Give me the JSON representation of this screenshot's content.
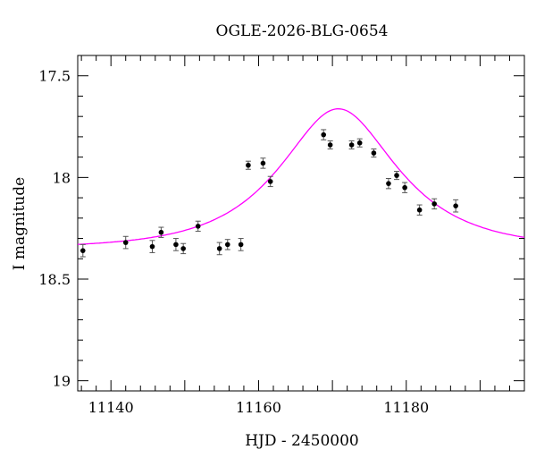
{
  "chart_data": {
    "type": "scatter",
    "title": "OGLE-2026-BLG-0654",
    "xlabel": "HJD - 2450000",
    "ylabel": "I magnitude",
    "xlim": [
      11135.5,
      11196
    ],
    "ylim": [
      19.05,
      17.4
    ],
    "y_inverted": true,
    "x_ticks": [
      11140,
      11160,
      11180
    ],
    "y_ticks": [
      17.5,
      18,
      18.5,
      19
    ],
    "y_tick_labels": [
      "17.5",
      "18",
      "18.5",
      "19"
    ],
    "grid": false,
    "model_color": "#ff00ff",
    "point_color": "#000000",
    "errorbar_color": "#555555",
    "points": [
      {
        "x": 11136.2,
        "y": 18.36,
        "err": 0.03
      },
      {
        "x": 11142.0,
        "y": 18.32,
        "err": 0.03
      },
      {
        "x": 11145.6,
        "y": 18.34,
        "err": 0.03
      },
      {
        "x": 11146.8,
        "y": 18.27,
        "err": 0.025
      },
      {
        "x": 11148.8,
        "y": 18.33,
        "err": 0.03
      },
      {
        "x": 11149.8,
        "y": 18.35,
        "err": 0.025
      },
      {
        "x": 11151.8,
        "y": 18.24,
        "err": 0.025
      },
      {
        "x": 11154.7,
        "y": 18.35,
        "err": 0.03
      },
      {
        "x": 11155.8,
        "y": 18.33,
        "err": 0.025
      },
      {
        "x": 11157.6,
        "y": 18.33,
        "err": 0.03
      },
      {
        "x": 11158.6,
        "y": 17.94,
        "err": 0.02
      },
      {
        "x": 11160.6,
        "y": 17.93,
        "err": 0.025
      },
      {
        "x": 11161.6,
        "y": 18.02,
        "err": 0.025
      },
      {
        "x": 11168.8,
        "y": 17.79,
        "err": 0.025
      },
      {
        "x": 11169.7,
        "y": 17.84,
        "err": 0.02
      },
      {
        "x": 11172.6,
        "y": 17.84,
        "err": 0.02
      },
      {
        "x": 11173.7,
        "y": 17.83,
        "err": 0.02
      },
      {
        "x": 11175.6,
        "y": 17.88,
        "err": 0.02
      },
      {
        "x": 11177.6,
        "y": 18.03,
        "err": 0.025
      },
      {
        "x": 11178.7,
        "y": 17.99,
        "err": 0.02
      },
      {
        "x": 11179.8,
        "y": 18.05,
        "err": 0.025
      },
      {
        "x": 11181.8,
        "y": 18.16,
        "err": 0.025
      },
      {
        "x": 11183.8,
        "y": 18.13,
        "err": 0.025
      },
      {
        "x": 11186.7,
        "y": 18.14,
        "err": 0.03
      }
    ],
    "model": {
      "type": "point-lens microlensing fit",
      "baseline_mag": 18.35,
      "t0": 11170.8,
      "u0": 0.6,
      "tE": 12.5
    }
  }
}
